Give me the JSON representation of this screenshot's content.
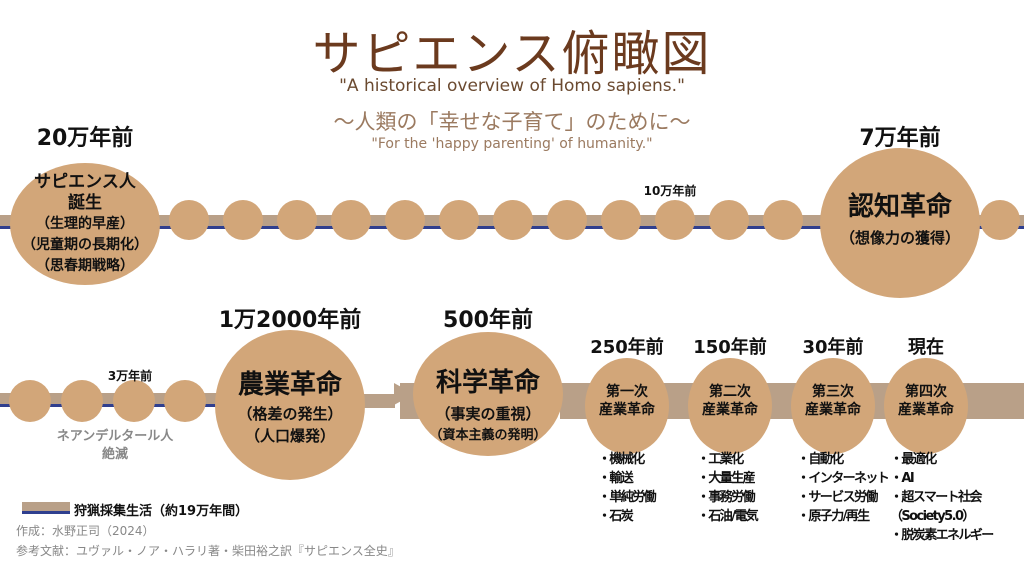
{
  "title": "サピエンス俯瞰図",
  "subtitle_en": "\"A historical overview of Homo sapiens.\"",
  "tagline_jp": "〜人類の「幸せな子育て」のために〜",
  "tagline_en": "\"For the 'happy parenting' of humanity.\"",
  "top": {
    "start": {
      "year": "20万年前",
      "lines": [
        "サピエンス人",
        "誕生",
        "（生理的早産）",
        "（児童期の長期化）",
        "（思春期戦略）"
      ]
    },
    "mid_label": "10万年前",
    "cognitive": {
      "year": "7万年前",
      "title": "認知革命",
      "sub": "（想像力の獲得）"
    }
  },
  "bottom": {
    "mid_label": "3万年前",
    "neanderthal": [
      "ネアンデルタール人",
      "絶滅"
    ],
    "agri": {
      "year": "1万2000年前",
      "title": "農業革命",
      "subs": [
        "（格差の発生）",
        "（人口爆発）"
      ]
    },
    "sci": {
      "year": "500年前",
      "title": "科学革命",
      "subs": [
        "（事実の重視）",
        "（資本主義の発明）"
      ]
    },
    "ind": [
      {
        "year": "250年前",
        "lines": [
          "第一次",
          "産業革命"
        ],
        "items": [
          "・機械化",
          "・輸送",
          "・単純労働",
          "・石炭"
        ]
      },
      {
        "year": "150年前",
        "lines": [
          "第二次",
          "産業革命"
        ],
        "items": [
          "・工業化",
          "・大量生産",
          "・事務労働",
          "・石油/電気"
        ]
      },
      {
        "year": "30年前",
        "lines": [
          "第三次",
          "産業革命"
        ],
        "items": [
          "・自動化",
          "・インターネット",
          "・サービス労働",
          "・原子力/再生"
        ]
      },
      {
        "year": "現在",
        "lines": [
          "第四次",
          "産業革命"
        ],
        "items": [
          "・最適化",
          "・AI",
          "・超スマート社会",
          "（Society5.0）",
          "・脱炭素エネルギー"
        ]
      }
    ]
  },
  "legend": "狩猟採集生活（約19万年間）",
  "credit": "作成：水野正司（2024）",
  "reference": "参考文献：ユヴァル・ノア・ハラリ著・柴田裕之訳『サピエンス全史』",
  "colors": {
    "circle": "#d2a679",
    "bar": "#b9a088",
    "line": "#2f3f8f",
    "title": "#6b3a1e"
  }
}
